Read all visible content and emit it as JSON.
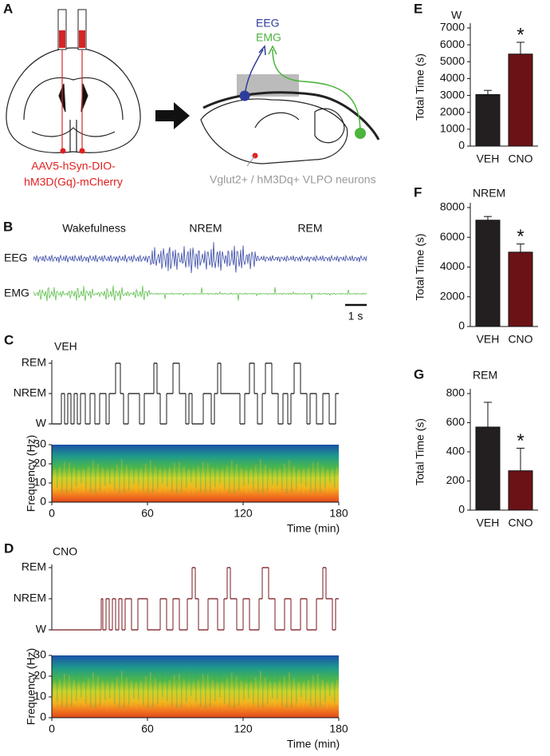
{
  "panels": {
    "A": {
      "letter": "A",
      "viral_label": [
        "AAV5-hSyn-DIO-",
        "hM3D(Gq)-mCherry"
      ],
      "eeg": "EEG",
      "emg": "EMG",
      "neuron_label": "Vglut2+ / hM3Dq+ VLPO neurons"
    },
    "B": {
      "letter": "B",
      "states": [
        "Wakefulness",
        "NREM",
        "REM"
      ],
      "traces": [
        "EEG",
        "EMG"
      ],
      "scale_bar": "1 s"
    }
  },
  "chart_data": [
    {
      "type": "step",
      "panel": "C",
      "title": "VEH",
      "color": "#1a1a1a",
      "xlim": [
        0,
        180
      ],
      "ylim": [
        0,
        2
      ],
      "yticks": [
        {
          "value": 0,
          "label": "W"
        },
        {
          "value": 1,
          "label": "NREM"
        },
        {
          "value": 2,
          "label": "REM"
        }
      ],
      "x": [
        0,
        6,
        8,
        10,
        12,
        14,
        16,
        18,
        21,
        24,
        27,
        30,
        34,
        36,
        40,
        43,
        45,
        48,
        55,
        58,
        64,
        66,
        68,
        72,
        76,
        80,
        84,
        86,
        88,
        95,
        100,
        102,
        104,
        106,
        118,
        121,
        124,
        127,
        129,
        132,
        134,
        138,
        142,
        145,
        148,
        150,
        152,
        156,
        160,
        162,
        166,
        170,
        174,
        178,
        180
      ],
      "values": [
        0,
        1,
        0,
        1,
        0,
        1,
        0,
        1,
        0,
        1,
        0,
        1,
        0,
        1,
        2,
        1,
        0,
        1,
        0,
        1,
        2,
        1,
        0,
        1,
        2,
        1,
        0,
        1,
        0,
        1,
        0,
        1,
        2,
        1,
        0,
        1,
        2,
        1,
        0,
        1,
        2,
        1,
        0,
        1,
        0,
        1,
        2,
        1,
        0,
        1,
        0,
        1,
        0,
        1,
        1
      ]
    },
    {
      "type": "spectrogram",
      "xlabel": "Time (min)",
      "ylabel": "Frequency (Hz)",
      "xlim": [
        0,
        180
      ],
      "ylim": [
        0,
        30
      ],
      "xticks": [
        0,
        60,
        120,
        180
      ],
      "yticks": [
        0,
        10,
        20,
        30
      ]
    },
    {
      "type": "step",
      "panel": "D",
      "title": "CNO",
      "color": "#7a1a1e",
      "xlim": [
        0,
        180
      ],
      "ylim": [
        0,
        2
      ],
      "yticks": [
        {
          "value": 0,
          "label": "W"
        },
        {
          "value": 1,
          "label": "NREM"
        },
        {
          "value": 2,
          "label": "REM"
        }
      ],
      "x": [
        0,
        31,
        32,
        34,
        36,
        38,
        40,
        42,
        44,
        46,
        50,
        54,
        60,
        68,
        72,
        76,
        80,
        85,
        88,
        90,
        92,
        98,
        104,
        108,
        110,
        112,
        116,
        120,
        124,
        130,
        132,
        136,
        140,
        146,
        150,
        156,
        160,
        166,
        170,
        172,
        176,
        178,
        180
      ],
      "values": [
        0,
        1,
        0,
        1,
        0,
        1,
        0,
        1,
        0,
        1,
        0,
        1,
        0,
        1,
        0,
        1,
        0,
        1,
        2,
        1,
        0,
        1,
        0,
        1,
        2,
        1,
        0,
        1,
        0,
        1,
        2,
        1,
        0,
        1,
        0,
        1,
        0,
        1,
        2,
        1,
        0,
        1,
        1
      ]
    },
    {
      "type": "spectrogram",
      "xlabel": "Time (min)",
      "ylabel": "Frequency (Hz)",
      "xlim": [
        0,
        180
      ],
      "ylim": [
        0,
        30
      ],
      "xticks": [
        0,
        60,
        120,
        180
      ],
      "yticks": [
        0,
        10,
        20,
        30
      ]
    },
    {
      "type": "bar",
      "panel": "E",
      "title": "W",
      "ylabel": "Total Time (s)",
      "categories": [
        "VEH",
        "CNO"
      ],
      "values": [
        3050,
        5450
      ],
      "errors": [
        250,
        700
      ],
      "colors": [
        "#231f20",
        "#6b1216"
      ],
      "annotation": "*",
      "ylim": [
        0,
        7000
      ],
      "yticks": [
        0,
        1000,
        2000,
        3000,
        4000,
        5000,
        6000,
        7000
      ]
    },
    {
      "type": "bar",
      "panel": "F",
      "title": "NREM",
      "ylabel": "Total Time (s)",
      "categories": [
        "VEH",
        "CNO"
      ],
      "values": [
        7150,
        5000
      ],
      "errors": [
        250,
        550
      ],
      "colors": [
        "#231f20",
        "#6b1216"
      ],
      "annotation": "*",
      "ylim": [
        0,
        8000
      ],
      "yticks": [
        0,
        2000,
        4000,
        6000,
        8000
      ]
    },
    {
      "type": "bar",
      "panel": "G",
      "title": "REM",
      "ylabel": "Total Time (s)",
      "categories": [
        "VEH",
        "CNO"
      ],
      "values": [
        570,
        270
      ],
      "errors": [
        170,
        155
      ],
      "colors": [
        "#231f20",
        "#6b1216"
      ],
      "annotation": "*",
      "ylim": [
        0,
        800
      ],
      "yticks": [
        0,
        200,
        400,
        600,
        800
      ]
    }
  ]
}
